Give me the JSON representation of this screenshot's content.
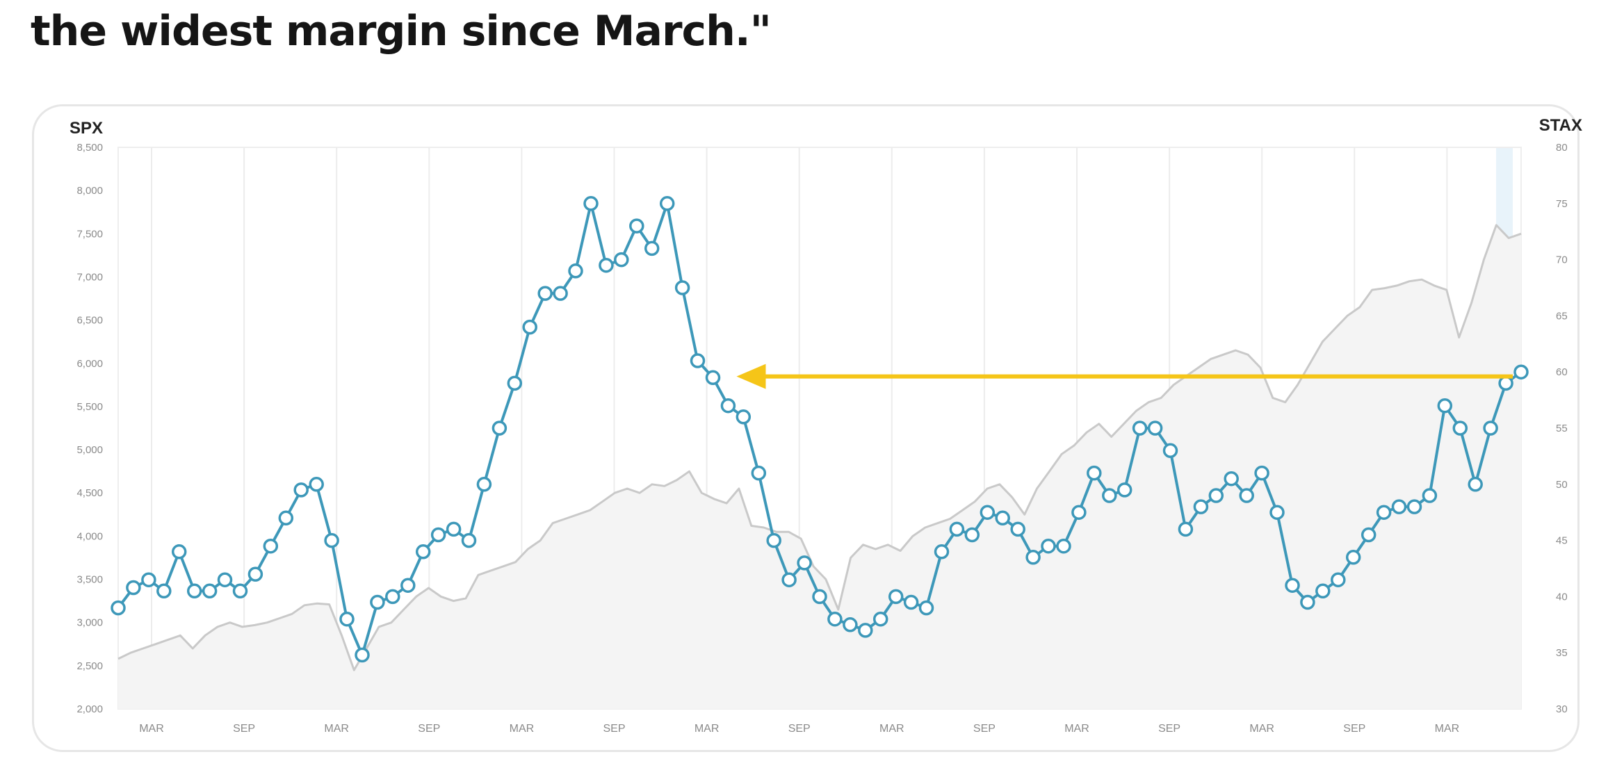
{
  "headline": {
    "text": "the widest margin since March.\""
  },
  "colors": {
    "spx_line": "#c9c9c9",
    "spx_fill": "#f4f4f4",
    "stax_line": "#3d98b9",
    "marker_fill": "#ffffff",
    "arrow": "#f5c518",
    "grid": "#ececec",
    "highlight": "#e8f3fa"
  },
  "chart_data": {
    "type": "line",
    "title": "",
    "x_tick_labels": [
      "MAR",
      "SEP",
      "MAR",
      "SEP",
      "MAR",
      "SEP",
      "MAR",
      "SEP",
      "MAR",
      "SEP",
      "MAR",
      "SEP",
      "MAR",
      "SEP",
      "MAR"
    ],
    "left_axis": {
      "label": "SPX",
      "range": [
        2000,
        8500
      ],
      "ticks": [
        "8,500",
        "8,000",
        "7,500",
        "7,000",
        "6,500",
        "6,000",
        "5,500",
        "5,000",
        "4,500",
        "4,000",
        "3,500",
        "3,000",
        "2,500",
        "2,000"
      ]
    },
    "right_axis": {
      "label": "STAX",
      "range": [
        30,
        80
      ],
      "ticks": [
        "80",
        "75",
        "70",
        "65",
        "60",
        "55",
        "50",
        "45",
        "40",
        "35",
        "30"
      ]
    },
    "series": [
      {
        "name": "SPX",
        "axis": "left",
        "style": "area",
        "values": [
          2580,
          2650,
          2700,
          2750,
          2800,
          2850,
          2700,
          2850,
          2950,
          3000,
          2950,
          2970,
          3000,
          3050,
          3100,
          3200,
          3220,
          3210,
          2850,
          2450,
          2700,
          2950,
          3000,
          3150,
          3300,
          3400,
          3300,
          3250,
          3280,
          3550,
          3600,
          3650,
          3700,
          3850,
          3950,
          4150,
          4200,
          4250,
          4300,
          4400,
          4500,
          4550,
          4500,
          4600,
          4580,
          4650,
          4750,
          4500,
          4430,
          4380,
          4550,
          4120,
          4100,
          4050,
          4050,
          3970,
          3650,
          3500,
          3150,
          3750,
          3900,
          3850,
          3900,
          3830,
          4000,
          4100,
          4150,
          4200,
          4300,
          4400,
          4550,
          4600,
          4450,
          4250,
          4550,
          4750,
          4950,
          5050,
          5200,
          5300,
          5150,
          5300,
          5450,
          5550,
          5600,
          5750,
          5850,
          5950,
          6050,
          6100,
          6150,
          6100,
          5950,
          5600,
          5550,
          5750,
          6000,
          6250,
          6400,
          6550,
          6650,
          6850,
          6870,
          6900,
          6950,
          6970,
          6900,
          6850,
          6300,
          6700,
          7200,
          7600,
          7450,
          7500
        ]
      },
      {
        "name": "STAX",
        "axis": "right",
        "style": "line-markers",
        "values": [
          39,
          40.8,
          41.5,
          40.5,
          44,
          40.5,
          40.5,
          41.5,
          40.5,
          42,
          44.5,
          47,
          49.5,
          50,
          45,
          38,
          34.8,
          39.5,
          40,
          41,
          44,
          45.5,
          46,
          45,
          50,
          55,
          59,
          64,
          67,
          67,
          69,
          75,
          69.5,
          70,
          73,
          71,
          75,
          67.5,
          61,
          59.5,
          57,
          56,
          51,
          45,
          41.5,
          43,
          40,
          38,
          37.5,
          37,
          38,
          40,
          39.5,
          39,
          44,
          46,
          45.5,
          47.5,
          47,
          46,
          43.5,
          44.5,
          44.5,
          47.5,
          51,
          49,
          49.5,
          55,
          55,
          53,
          46,
          48,
          49,
          50.5,
          49,
          51,
          47.5,
          41,
          39.5,
          40.5,
          41.5,
          43.5,
          45.5,
          47.5,
          48,
          48,
          49,
          57,
          55,
          50,
          55,
          59,
          60
        ]
      }
    ],
    "annotation": {
      "type": "arrow",
      "value": 59.6,
      "axis": "right",
      "from_point": 92,
      "to_point": 39
    },
    "grid": {
      "vertical": true,
      "horizontal": false
    }
  }
}
